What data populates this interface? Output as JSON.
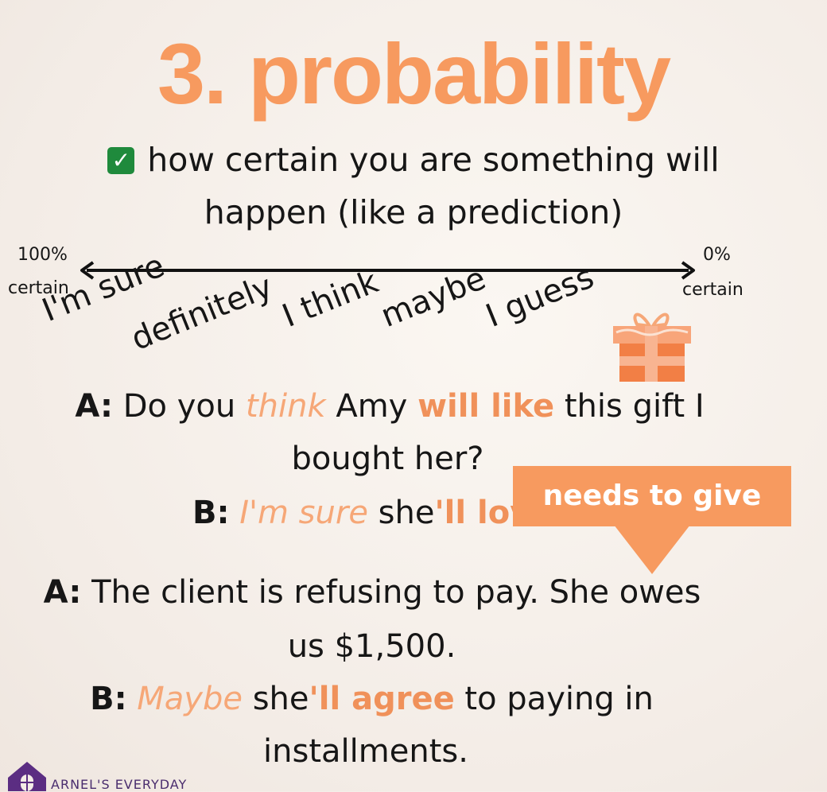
{
  "title": "3. probability",
  "definition": {
    "line1": "how certain you are something will",
    "line2": "happen (like a prediction)",
    "icon": "check-box-icon",
    "icon_color": "#1f8a3c"
  },
  "scale": {
    "left_percent": "100%",
    "left_word": "certain",
    "right_percent": "0%",
    "right_word": "certain",
    "terms": [
      "I'm sure",
      "definitely",
      "I think",
      "maybe",
      "I guess"
    ]
  },
  "dialog1": {
    "a_speaker": "A:",
    "a_text1": " Do you ",
    "a_think": "think",
    "a_text2": " Amy ",
    "a_will_like": "will like",
    "a_text3": " this gift I",
    "a_line2": "bought her?",
    "b_speaker": "B:",
    "b_im_sure": "I'm sure",
    "b_text1": " she",
    "b_ll_love": "'ll lov"
  },
  "callout": {
    "text": "needs to give"
  },
  "dialog2": {
    "a_speaker": "A:",
    "a_line1": " The client is refusing to pay. She owes",
    "a_line2": "us $1,500.",
    "b_speaker": "B:",
    "b_maybe": "Maybe",
    "b_text1": " she",
    "b_ll_agree": "'ll agree",
    "b_text2": " to paying in",
    "b_line2": "installments."
  },
  "brand": {
    "text": "ARNEL'S EVERYDAY",
    "icon": "house-logo-icon"
  },
  "colors": {
    "accent": "#f79a5f",
    "italic_accent": "#f6a777",
    "text": "#161616"
  }
}
